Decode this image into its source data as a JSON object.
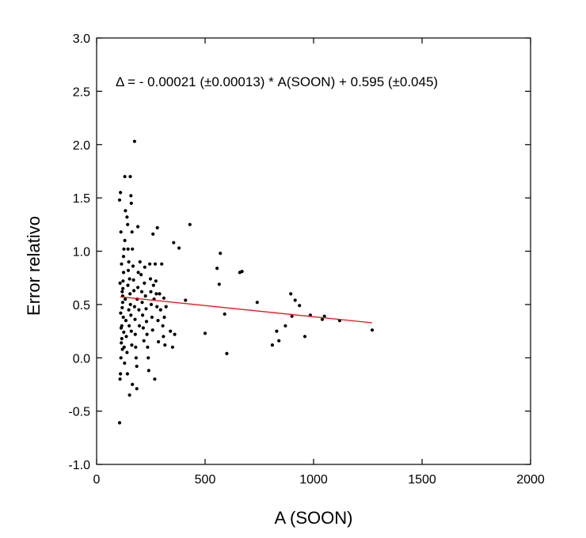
{
  "chart_data": {
    "type": "scatter",
    "title": "",
    "xlabel": "A (SOON)",
    "ylabel": "Error relativo",
    "xlim": [
      0,
      2000
    ],
    "ylim": [
      -1.0,
      3.0
    ],
    "x_ticks": [
      0,
      500,
      1000,
      1500,
      2000
    ],
    "y_ticks": [
      -1.0,
      -0.5,
      0.0,
      0.5,
      1.0,
      1.5,
      2.0,
      2.5,
      3.0
    ],
    "x_tick_labels": [
      "0",
      "500",
      "1000",
      "1500",
      "2000"
    ],
    "y_tick_labels": [
      "-1.0",
      "-0.5",
      "0.0",
      "0.5",
      "1.0",
      "1.5",
      "2.0",
      "2.5",
      "3.0"
    ],
    "grid": false,
    "annotation": "Δ = - 0.00021 (±0.00013) * A(SOON) + 0.595 (±0.045)",
    "colors": {
      "points": "#000000",
      "fit_line": "#e8141c"
    },
    "fit": {
      "slope": -0.00021,
      "intercept": 0.595,
      "x_range": [
        110,
        1270
      ]
    },
    "points": [
      [
        106,
        -0.61
      ],
      [
        108,
        -0.2
      ],
      [
        110,
        -0.15
      ],
      [
        112,
        0.0
      ],
      [
        114,
        0.14
      ],
      [
        116,
        0.3
      ],
      [
        118,
        0.47
      ],
      [
        120,
        0.58
      ],
      [
        122,
        0.72
      ],
      [
        124,
        0.95
      ],
      [
        106,
        1.48
      ],
      [
        110,
        1.55
      ],
      [
        112,
        1.18
      ],
      [
        115,
        0.88
      ],
      [
        118,
        0.62
      ],
      [
        120,
        0.52
      ],
      [
        123,
        0.38
      ],
      [
        125,
        0.24
      ],
      [
        127,
        0.1
      ],
      [
        129,
        -0.05
      ],
      [
        108,
        0.7
      ],
      [
        111,
        0.42
      ],
      [
        113,
        0.28
      ],
      [
        116,
        0.18
      ],
      [
        119,
        0.08
      ],
      [
        121,
        0.65
      ],
      [
        124,
        0.8
      ],
      [
        126,
        1.02
      ],
      [
        130,
        1.1
      ],
      [
        133,
        1.38
      ],
      [
        130,
        1.7
      ],
      [
        132,
        0.55
      ],
      [
        135,
        0.35
      ],
      [
        137,
        0.2
      ],
      [
        140,
        0.05
      ],
      [
        142,
        -0.15
      ],
      [
        144,
        0.68
      ],
      [
        146,
        0.82
      ],
      [
        148,
        0.45
      ],
      [
        150,
        0.3
      ],
      [
        140,
        1.32
      ],
      [
        143,
        1.25
      ],
      [
        145,
        1.02
      ],
      [
        148,
        0.9
      ],
      [
        152,
        0.74
      ],
      [
        154,
        0.6
      ],
      [
        156,
        0.5
      ],
      [
        158,
        0.4
      ],
      [
        160,
        0.25
      ],
      [
        162,
        0.12
      ],
      [
        155,
        1.7
      ],
      [
        158,
        1.52
      ],
      [
        160,
        1.45
      ],
      [
        163,
        1.18
      ],
      [
        165,
        1.02
      ],
      [
        168,
        0.86
      ],
      [
        170,
        0.73
      ],
      [
        172,
        0.63
      ],
      [
        175,
        0.48
      ],
      [
        177,
        0.36
      ],
      [
        175,
        2.03
      ],
      [
        178,
        0.22
      ],
      [
        180,
        0.1
      ],
      [
        182,
        0.0
      ],
      [
        185,
        -0.08
      ],
      [
        187,
        0.55
      ],
      [
        190,
        0.66
      ],
      [
        192,
        0.8
      ],
      [
        195,
        0.45
      ],
      [
        197,
        0.3
      ],
      [
        152,
        -0.35
      ],
      [
        165,
        -0.25
      ],
      [
        185,
        -0.29
      ],
      [
        190,
        1.23
      ],
      [
        200,
        0.9
      ],
      [
        205,
        0.78
      ],
      [
        208,
        0.62
      ],
      [
        210,
        0.52
      ],
      [
        212,
        0.4
      ],
      [
        215,
        0.28
      ],
      [
        218,
        0.16
      ],
      [
        220,
        0.7
      ],
      [
        222,
        0.85
      ],
      [
        225,
        0.58
      ],
      [
        228,
        0.46
      ],
      [
        230,
        0.34
      ],
      [
        232,
        0.22
      ],
      [
        235,
        0.1
      ],
      [
        238,
        0.0
      ],
      [
        240,
        -0.12
      ],
      [
        245,
        0.88
      ],
      [
        248,
        0.74
      ],
      [
        250,
        0.62
      ],
      [
        252,
        0.5
      ],
      [
        255,
        0.38
      ],
      [
        258,
        0.26
      ],
      [
        260,
        1.16
      ],
      [
        262,
        0.68
      ],
      [
        265,
        0.55
      ],
      [
        268,
        -0.2
      ],
      [
        270,
        0.88
      ],
      [
        273,
        0.72
      ],
      [
        275,
        0.6
      ],
      [
        278,
        0.48
      ],
      [
        280,
        1.22
      ],
      [
        283,
        0.35
      ],
      [
        285,
        0.15
      ],
      [
        290,
        0.6
      ],
      [
        295,
        0.45
      ],
      [
        300,
        0.88
      ],
      [
        305,
        0.3
      ],
      [
        308,
        0.2
      ],
      [
        310,
        0.56
      ],
      [
        312,
        0.38
      ],
      [
        315,
        0.12
      ],
      [
        320,
        0.48
      ],
      [
        340,
        0.25
      ],
      [
        350,
        0.1
      ],
      [
        355,
        1.08
      ],
      [
        360,
        0.22
      ],
      [
        380,
        1.03
      ],
      [
        410,
        0.54
      ],
      [
        430,
        1.25
      ],
      [
        500,
        0.23
      ],
      [
        555,
        0.84
      ],
      [
        565,
        0.69
      ],
      [
        570,
        0.98
      ],
      [
        590,
        0.41
      ],
      [
        600,
        0.04
      ],
      [
        660,
        0.8
      ],
      [
        670,
        0.81
      ],
      [
        740,
        0.52
      ],
      [
        810,
        0.12
      ],
      [
        830,
        0.25
      ],
      [
        840,
        0.16
      ],
      [
        870,
        0.3
      ],
      [
        895,
        0.6
      ],
      [
        900,
        0.39
      ],
      [
        915,
        0.54
      ],
      [
        935,
        0.49
      ],
      [
        960,
        0.2
      ],
      [
        985,
        0.4
      ],
      [
        1040,
        0.36
      ],
      [
        1050,
        0.39
      ],
      [
        1120,
        0.35
      ],
      [
        1270,
        0.26
      ]
    ]
  }
}
